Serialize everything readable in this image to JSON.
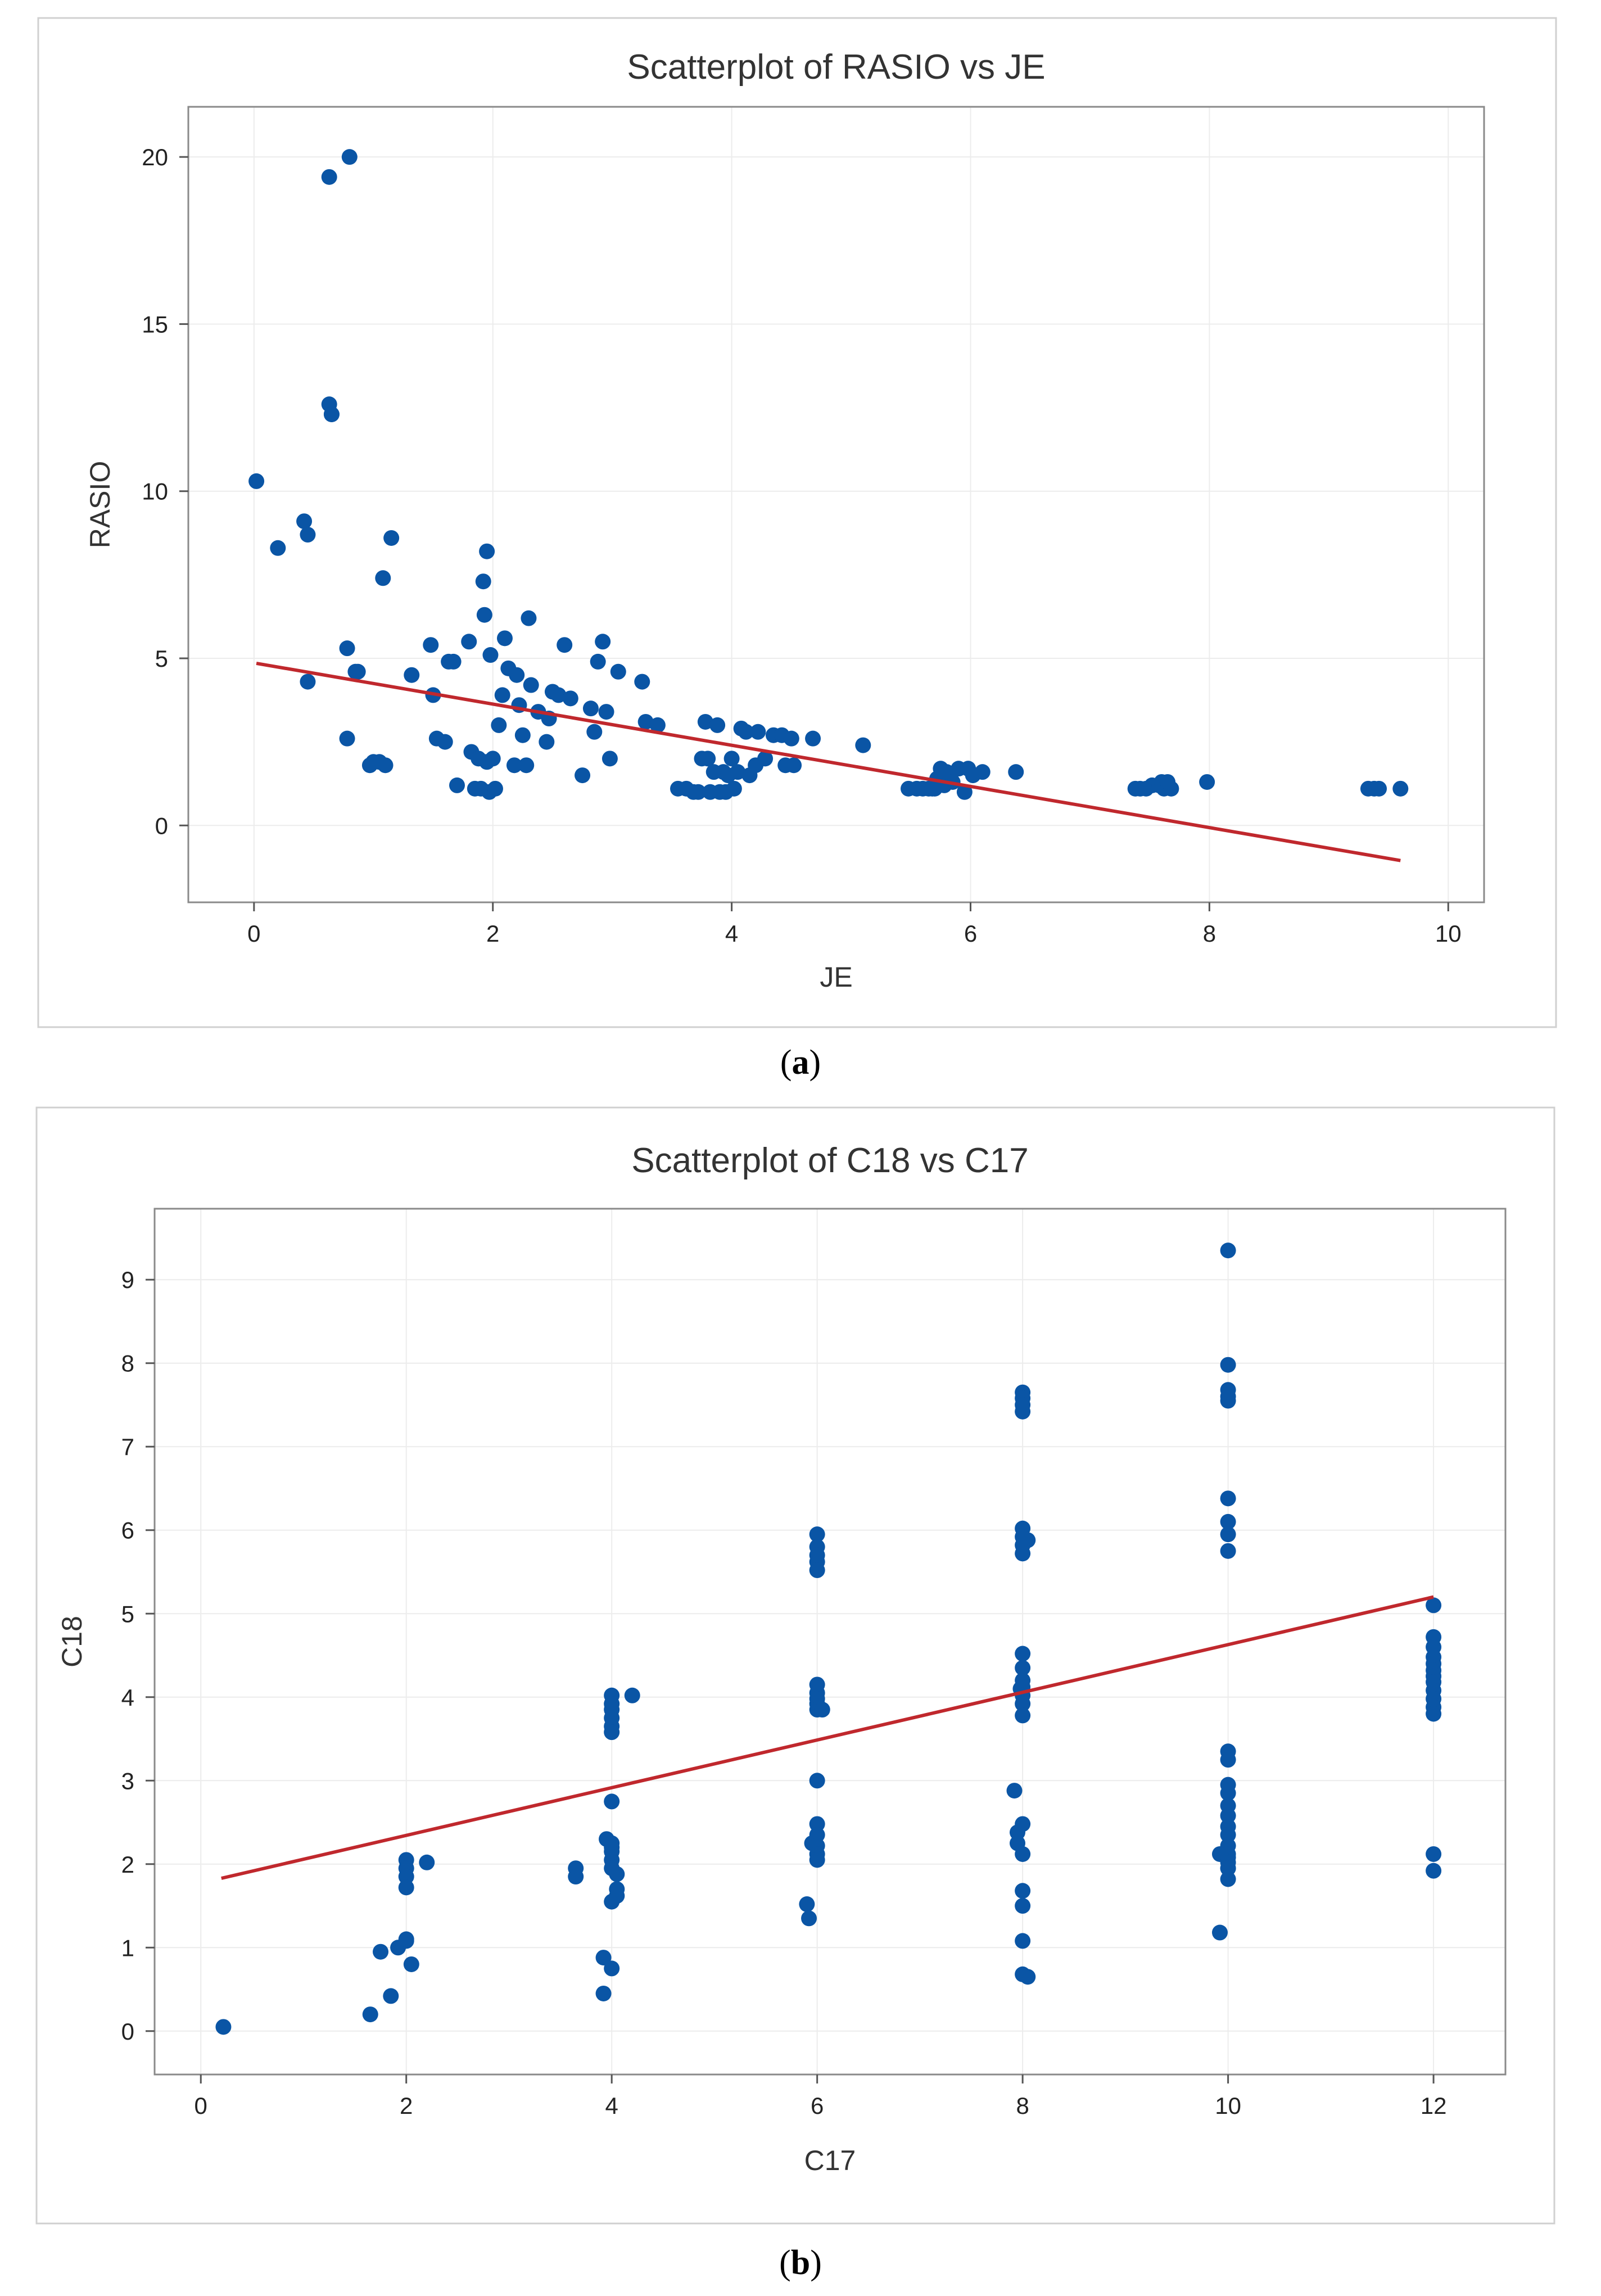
{
  "chart_data": [
    {
      "type": "scatter",
      "title": "Scatterplot of RASIO vs JE",
      "xlabel": "JE",
      "ylabel": "RASIO",
      "xlim": [
        -0.55,
        10.3
      ],
      "ylim": [
        -2.3,
        21.5
      ],
      "xticks": [
        "0",
        "2",
        "4",
        "6",
        "8",
        "10"
      ],
      "yticks": [
        "0",
        "5",
        "10",
        "15",
        "20"
      ],
      "grid": true,
      "point_color": "#0a55a5",
      "fit_color": "#c0282d",
      "fit_line": {
        "x": [
          0.02,
          9.6
        ],
        "y": [
          4.85,
          -1.05
        ]
      },
      "x": [
        0.02,
        0.2,
        0.42,
        0.45,
        0.45,
        0.63,
        0.63,
        0.65,
        0.65,
        0.78,
        0.78,
        0.8,
        0.85,
        0.87,
        0.97,
        1.0,
        1.05,
        1.08,
        1.1,
        1.15,
        1.32,
        1.48,
        1.5,
        1.53,
        1.6,
        1.63,
        1.67,
        1.7,
        1.8,
        1.82,
        1.85,
        1.88,
        1.9,
        1.92,
        1.93,
        1.95,
        1.95,
        1.97,
        1.98,
        2.0,
        2.02,
        2.05,
        2.08,
        2.1,
        2.13,
        2.18,
        2.2,
        2.22,
        2.25,
        2.28,
        2.3,
        2.32,
        2.38,
        2.45,
        2.47,
        2.5,
        2.55,
        2.6,
        2.65,
        2.75,
        2.82,
        2.85,
        2.88,
        2.92,
        2.95,
        2.98,
        3.05,
        3.25,
        3.28,
        3.38,
        3.55,
        3.62,
        3.68,
        3.72,
        3.75,
        3.78,
        3.8,
        3.82,
        3.85,
        3.88,
        3.9,
        3.93,
        3.95,
        3.97,
        4.0,
        4.02,
        4.05,
        4.08,
        4.12,
        4.15,
        4.2,
        4.22,
        4.28,
        4.35,
        4.42,
        4.45,
        4.5,
        4.52,
        4.68,
        5.1,
        5.48,
        5.55,
        5.6,
        5.65,
        5.68,
        5.7,
        5.72,
        5.75,
        5.78,
        5.8,
        5.85,
        5.9,
        5.95,
        5.98,
        6.02,
        6.1,
        6.38,
        7.38,
        7.42,
        7.47,
        7.52,
        7.58,
        7.6,
        7.62,
        7.65,
        7.68,
        7.98,
        9.33,
        9.38,
        9.42,
        9.6
      ],
      "y": [
        10.3,
        8.3,
        9.1,
        8.7,
        4.3,
        19.4,
        12.6,
        12.3,
        12.3,
        5.3,
        2.6,
        20.0,
        4.6,
        4.6,
        1.8,
        1.9,
        1.9,
        7.4,
        1.8,
        8.6,
        4.5,
        5.4,
        3.9,
        2.6,
        2.5,
        4.9,
        4.9,
        1.2,
        5.5,
        2.2,
        1.1,
        2.0,
        1.1,
        7.3,
        6.3,
        8.2,
        1.9,
        1.0,
        5.1,
        2.0,
        1.1,
        3.0,
        3.9,
        5.6,
        4.7,
        1.8,
        4.5,
        3.6,
        2.7,
        1.8,
        6.2,
        4.2,
        3.4,
        2.5,
        3.2,
        4.0,
        3.9,
        5.4,
        3.8,
        1.5,
        3.5,
        2.8,
        4.9,
        5.5,
        3.4,
        2.0,
        4.6,
        4.3,
        3.1,
        3.0,
        1.1,
        1.1,
        1.0,
        1.0,
        2.0,
        3.1,
        2.0,
        1.0,
        1.6,
        3.0,
        1.0,
        1.6,
        1.0,
        1.5,
        2.0,
        1.1,
        1.6,
        2.9,
        2.8,
        1.5,
        1.8,
        2.8,
        2.0,
        2.7,
        2.7,
        1.8,
        2.6,
        1.8,
        2.6,
        2.4,
        1.1,
        1.1,
        1.1,
        1.1,
        1.1,
        1.1,
        1.4,
        1.7,
        1.2,
        1.6,
        1.3,
        1.7,
        1.0,
        1.7,
        1.5,
        1.6,
        1.6,
        1.1,
        1.1,
        1.1,
        1.2,
        1.2,
        1.3,
        1.1,
        1.3,
        1.1,
        1.3,
        1.1,
        1.1,
        1.1,
        1.1
      ]
    },
    {
      "type": "scatter",
      "title": "Scatterplot of C18 vs C17",
      "xlabel": "C17",
      "ylabel": "C18",
      "xlim": [
        -0.45,
        12.7
      ],
      "ylim": [
        -0.52,
        9.85
      ],
      "xticks": [
        "0",
        "2",
        "4",
        "6",
        "8",
        "10",
        "12"
      ],
      "yticks": [
        "0",
        "1",
        "2",
        "3",
        "4",
        "5",
        "6",
        "7",
        "8",
        "9"
      ],
      "grid": true,
      "point_color": "#0a55a5",
      "fit_color": "#c0282d",
      "fit_line": {
        "x": [
          0.2,
          12.0
        ],
        "y": [
          1.83,
          5.2
        ]
      },
      "x": [
        0.22,
        1.65,
        1.75,
        1.85,
        1.92,
        2.0,
        2.0,
        2.0,
        2.0,
        2.0,
        2.0,
        2.05,
        2.2,
        3.65,
        3.65,
        3.92,
        3.92,
        3.95,
        4.0,
        4.0,
        4.0,
        4.0,
        4.0,
        4.0,
        4.0,
        4.0,
        4.0,
        4.0,
        4.0,
        4.0,
        4.0,
        4.0,
        4.05,
        4.05,
        4.05,
        4.2,
        5.9,
        5.92,
        5.95,
        6.0,
        6.0,
        6.0,
        6.0,
        6.0,
        6.0,
        6.0,
        6.0,
        6.0,
        6.0,
        6.0,
        6.0,
        6.0,
        6.0,
        6.0,
        6.0,
        6.05,
        7.92,
        7.95,
        7.95,
        7.98,
        8.0,
        8.0,
        8.0,
        8.0,
        8.0,
        8.0,
        8.0,
        8.0,
        8.0,
        8.0,
        8.0,
        8.0,
        8.0,
        8.0,
        8.0,
        8.0,
        8.0,
        8.0,
        8.0,
        8.0,
        8.0,
        8.05,
        8.05,
        9.92,
        9.92,
        10.0,
        10.0,
        10.0,
        10.0,
        10.0,
        10.0,
        10.0,
        10.0,
        10.0,
        10.0,
        10.0,
        10.0,
        10.0,
        10.0,
        10.0,
        10.0,
        10.0,
        10.0,
        10.0,
        10.0,
        10.0,
        10.0,
        10.0,
        10.0,
        12.0,
        12.0,
        12.0,
        12.0,
        12.0,
        12.0,
        12.0,
        12.0,
        12.0,
        12.0,
        12.0,
        12.0,
        12.0,
        12.0
      ],
      "y": [
        0.05,
        0.2,
        0.95,
        0.42,
        1.0,
        2.05,
        1.95,
        1.85,
        1.72,
        1.08,
        1.1,
        0.8,
        2.02,
        1.95,
        1.85,
        0.45,
        0.88,
        2.3,
        4.02,
        3.92,
        3.85,
        3.75,
        3.65,
        3.58,
        2.75,
        2.25,
        2.15,
        2.05,
        1.95,
        1.55,
        0.75,
        2.2,
        1.88,
        1.7,
        1.62,
        4.02,
        1.52,
        1.35,
        2.25,
        5.95,
        5.8,
        5.7,
        5.62,
        5.52,
        4.15,
        4.05,
        3.98,
        3.92,
        3.85,
        3.0,
        2.48,
        2.35,
        2.22,
        2.12,
        2.05,
        3.85,
        2.88,
        2.25,
        2.38,
        4.1,
        7.65,
        7.58,
        7.5,
        7.42,
        6.02,
        5.92,
        5.82,
        5.72,
        4.52,
        4.35,
        4.2,
        4.12,
        4.02,
        3.92,
        3.78,
        2.48,
        2.12,
        1.68,
        1.5,
        1.08,
        0.68,
        0.65,
        5.88,
        2.12,
        1.18,
        9.35,
        7.98,
        7.68,
        7.6,
        7.55,
        6.38,
        6.1,
        5.95,
        5.75,
        3.35,
        3.25,
        2.95,
        2.85,
        2.7,
        2.58,
        2.45,
        2.35,
        2.22,
        2.08,
        1.95,
        1.82,
        2.12,
        2.02,
        1.95,
        5.1,
        4.72,
        4.6,
        4.48,
        4.4,
        4.32,
        4.25,
        4.18,
        4.08,
        3.98,
        3.88,
        3.8,
        2.12,
        1.92
      ]
    }
  ],
  "captions": {
    "a": {
      "open": "(",
      "letter": "a",
      "close": ")"
    },
    "b": {
      "open": "(",
      "letter": "b",
      "close": ")"
    }
  }
}
